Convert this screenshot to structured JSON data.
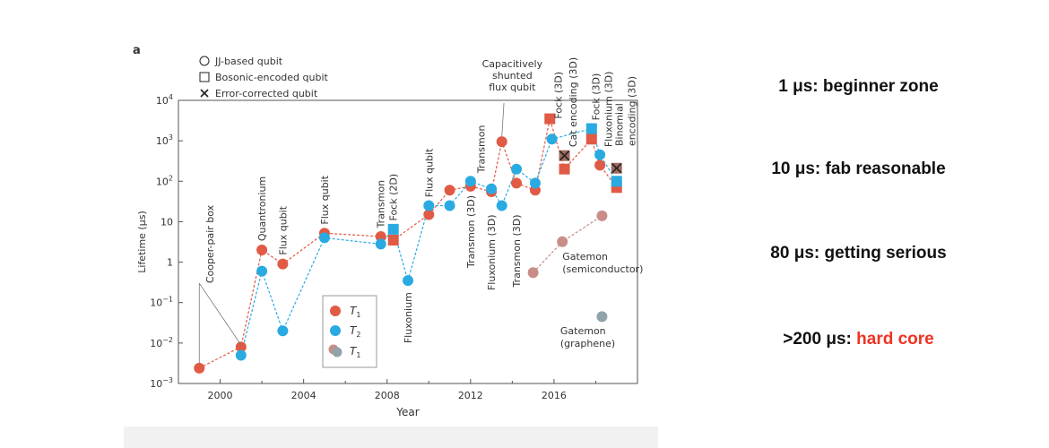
{
  "panel_label": "a",
  "right_notes": [
    {
      "prefix": "1 μs: ",
      "text": "beginner zone",
      "highlight": false
    },
    {
      "prefix": "10 μs: ",
      "text": "fab reasonable",
      "highlight": false
    },
    {
      "prefix": "80 μs: ",
      "text": "getting serious",
      "highlight": false
    },
    {
      "prefix": ">200 μs: ",
      "text": "hard core",
      "highlight": true
    }
  ],
  "colors": {
    "t1": "#e05a45",
    "t2": "#29abe2",
    "gatemon_semi": "#c98d88",
    "gatemon_graphene": "#8fa3a9"
  },
  "shape_legend": [
    {
      "shape": "circle",
      "label": "JJ-based qubit"
    },
    {
      "shape": "square",
      "label": "Bosonic-encoded qubit"
    },
    {
      "shape": "cross",
      "label": "Error-corrected qubit"
    }
  ],
  "color_legend": [
    {
      "key": "t1",
      "label": "T1"
    },
    {
      "key": "t2",
      "label": "T2"
    },
    {
      "key": "gatemon",
      "label": "T1"
    }
  ],
  "chart_data": {
    "type": "scatter",
    "xlabel": "Year",
    "ylabel": "Lifetime (μs)",
    "xlim": [
      1998,
      2020
    ],
    "ylim": [
      0.001,
      10000
    ],
    "yscale": "log",
    "xticks": [
      2000,
      2004,
      2008,
      2012,
      2016
    ],
    "yticks": [
      "10^-3",
      "10^-2",
      "10^-1",
      "1",
      "10",
      "10^2",
      "10^3",
      "10^4"
    ],
    "series": [
      {
        "name": "T1",
        "color_key": "t1",
        "points": [
          {
            "x": 1999,
            "y": 0.0024,
            "shape": "circle"
          },
          {
            "x": 2001,
            "y": 0.008,
            "shape": "circle"
          },
          {
            "x": 2002,
            "y": 2.0,
            "shape": "circle"
          },
          {
            "x": 2003,
            "y": 0.9,
            "shape": "circle"
          },
          {
            "x": 2005,
            "y": 5.2,
            "shape": "circle"
          },
          {
            "x": 2007.7,
            "y": 4.3,
            "shape": "circle"
          },
          {
            "x": 2008.3,
            "y": 3.5,
            "shape": "square"
          },
          {
            "x": 2010,
            "y": 15,
            "shape": "circle"
          },
          {
            "x": 2011,
            "y": 60,
            "shape": "circle"
          },
          {
            "x": 2012,
            "y": 75,
            "shape": "circle"
          },
          {
            "x": 2013,
            "y": 55,
            "shape": "circle"
          },
          {
            "x": 2013.5,
            "y": 950,
            "shape": "circle"
          },
          {
            "x": 2014.2,
            "y": 90,
            "shape": "circle"
          },
          {
            "x": 2015.1,
            "y": 60,
            "shape": "circle"
          },
          {
            "x": 2015.8,
            "y": 3500,
            "shape": "square"
          },
          {
            "x": 2016.5,
            "y": 200,
            "shape": "square"
          },
          {
            "x": 2017.8,
            "y": 1100,
            "shape": "square"
          },
          {
            "x": 2018.2,
            "y": 250,
            "shape": "circle"
          },
          {
            "x": 2019,
            "y": 70,
            "shape": "square"
          }
        ]
      },
      {
        "name": "T2",
        "color_key": "t2",
        "points": [
          {
            "x": 2001,
            "y": 0.005,
            "shape": "circle"
          },
          {
            "x": 2002,
            "y": 0.6,
            "shape": "circle"
          },
          {
            "x": 2003,
            "y": 0.02,
            "shape": "circle"
          },
          {
            "x": 2005,
            "y": 4.0,
            "shape": "circle"
          },
          {
            "x": 2007.7,
            "y": 2.8,
            "shape": "circle"
          },
          {
            "x": 2008.3,
            "y": 6.5,
            "shape": "square"
          },
          {
            "x": 2009,
            "y": 0.35,
            "shape": "circle"
          },
          {
            "x": 2010,
            "y": 25,
            "shape": "circle"
          },
          {
            "x": 2011,
            "y": 25,
            "shape": "circle"
          },
          {
            "x": 2012,
            "y": 100,
            "shape": "circle"
          },
          {
            "x": 2013,
            "y": 65,
            "shape": "circle"
          },
          {
            "x": 2013.5,
            "y": 25,
            "shape": "circle"
          },
          {
            "x": 2014.2,
            "y": 200,
            "shape": "circle"
          },
          {
            "x": 2015.1,
            "y": 90,
            "shape": "circle"
          },
          {
            "x": 2015.9,
            "y": 1100,
            "shape": "circle"
          },
          {
            "x": 2017.8,
            "y": 2000,
            "shape": "square"
          },
          {
            "x": 2018.2,
            "y": 450,
            "shape": "circle"
          },
          {
            "x": 2019,
            "y": 100,
            "shape": "square"
          }
        ]
      },
      {
        "name": "Gatemon (semiconductor)",
        "color_key": "gatemon_semi",
        "points": [
          {
            "x": 2015,
            "y": 0.55,
            "shape": "circle"
          },
          {
            "x": 2016.4,
            "y": 3.2,
            "shape": "circle"
          },
          {
            "x": 2018.3,
            "y": 14,
            "shape": "circle"
          }
        ]
      },
      {
        "name": "Gatemon (graphene)",
        "color_key": "gatemon_graphene",
        "points": [
          {
            "x": 2018.3,
            "y": 0.045,
            "shape": "circle"
          }
        ]
      }
    ],
    "error_corrected": [
      {
        "x": 2016.5,
        "y": 430
      },
      {
        "x": 2019,
        "y": 210
      }
    ],
    "annotations": [
      {
        "text": "Cooper-pair box",
        "x": 1999.5,
        "y": 0.3,
        "side": "up"
      },
      {
        "text": "Quantronium",
        "x": 2002.0,
        "y": 3.3,
        "side": "up"
      },
      {
        "text": "Flux qubit",
        "x": 2003.0,
        "y": 1.5,
        "side": "up"
      },
      {
        "text": "Flux qubit",
        "x": 2005.0,
        "y": 8.5,
        "side": "up"
      },
      {
        "text": "Transmon",
        "x": 2007.7,
        "y": 7.0,
        "side": "up"
      },
      {
        "text": "Fock (2D)",
        "x": 2008.3,
        "y": 10.5,
        "side": "up"
      },
      {
        "text": "Fluxonium",
        "x": 2009.0,
        "y": 0.18,
        "side": "down"
      },
      {
        "text": "Flux qubit",
        "x": 2010.0,
        "y": 40,
        "side": "up"
      },
      {
        "text": "Transmon (3D)",
        "x": 2012.0,
        "y": 45,
        "side": "down"
      },
      {
        "text": "Transmon",
        "x": 2012.5,
        "y": 160,
        "side": "up"
      },
      {
        "text": "Fluxonium (3D)",
        "x": 2013.0,
        "y": 15,
        "side": "down"
      },
      {
        "text": "Transmon (3D)",
        "x": 2014.2,
        "y": 15,
        "side": "down"
      },
      {
        "text": "Fock (3D)",
        "x": 2016.2,
        "y": 3500,
        "side": "up"
      },
      {
        "text": "Cat encoding (3D)",
        "x": 2016.9,
        "y": 700,
        "side": "up"
      },
      {
        "text": "Fock (3D)",
        "x": 2018.0,
        "y": 3200,
        "side": "up"
      },
      {
        "text": "Fluxonium (3D)",
        "x": 2018.6,
        "y": 700,
        "side": "up"
      }
    ],
    "capacitively_shunted_label": [
      "Capacitively",
      "shunted",
      "flux qubit"
    ],
    "binomial_label": [
      "Binomial",
      "encoding (3D)"
    ],
    "gatemon_semi_label": [
      "Gatemon",
      "(semiconductor)"
    ],
    "gatemon_graphene_label": [
      "Gatemon",
      "(graphene)"
    ]
  }
}
